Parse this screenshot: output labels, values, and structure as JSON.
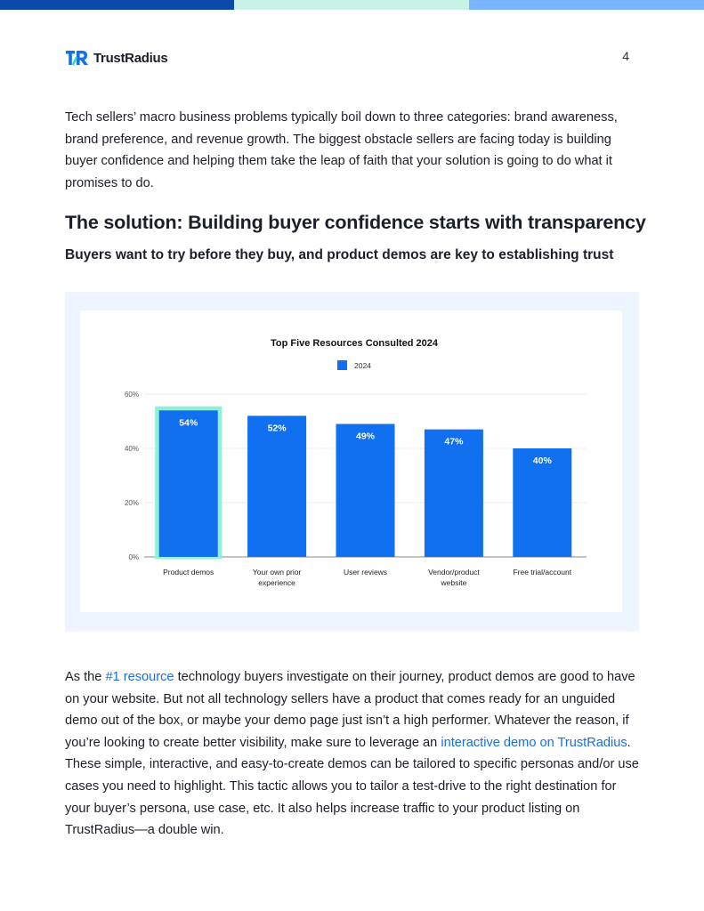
{
  "brand": {
    "name": "TrustRadius",
    "colors": {
      "bar_dark": "#0b4aa8",
      "bar_mint": "#c8f3e6",
      "bar_light": "#7ab6ff",
      "accent": "#1a6fe0"
    }
  },
  "page": {
    "number": "4"
  },
  "intro_paragraph": "Tech sellers’ macro business problems typically boil down to three categories: brand awareness, brand preference, and revenue growth. The biggest obstacle sellers are facing today is building buyer confidence and helping them take the leap of faith that your solution is going to do what it promises to do.",
  "section": {
    "heading": "The solution: Building buyer confidence starts with transparency",
    "subheading": "Buyers want to try before they buy, and product demos are key to establishing trust"
  },
  "chart_data": {
    "type": "bar",
    "title": "Top Five Resources Consulted 2024",
    "legend": [
      "2024"
    ],
    "legend_position": "top-center",
    "categories": [
      "Product demos",
      "Your own prior experience",
      "User reviews",
      "Vendor/product website",
      "Free trial/account"
    ],
    "category_lines": [
      [
        "Product demos"
      ],
      [
        "Your own prior",
        "experience"
      ],
      [
        "User reviews"
      ],
      [
        "Vendor/product",
        "website"
      ],
      [
        "Free trial/account"
      ]
    ],
    "series": [
      {
        "name": "2024",
        "values": [
          54,
          52,
          49,
          47,
          40
        ]
      }
    ],
    "data_labels": [
      "54%",
      "52%",
      "49%",
      "47%",
      "40%"
    ],
    "yticks": [
      "0%",
      "20%",
      "40%",
      "60%"
    ],
    "ylim": [
      0,
      60
    ],
    "grid": true,
    "highlighted_category": "Product demos",
    "bar_color": "#1170ef",
    "highlight_color": "#8ff0d8"
  },
  "closing_paragraph": {
    "t1": "As the ",
    "link1": "#1 resource",
    "t2": " technology buyers investigate on their journey, product demos are good to have on your website. But not all technology sellers have a product that comes ready for an unguided demo out of the box, or maybe your demo page just isn’t a high performer. Whatever the reason, if you’re looking to create better visibility, make sure to leverage an ",
    "link2": "interactive demo on TrustRadius",
    "t3": ". These simple, interactive, and easy-to-create demos can be tailored to specific personas and/or use cases you need to highlight. This tactic allows you to tailor a test-drive to the right destination for your buyer’s persona, use case, etc. It also helps increase traffic to your product listing on TrustRadius—a double win."
  }
}
